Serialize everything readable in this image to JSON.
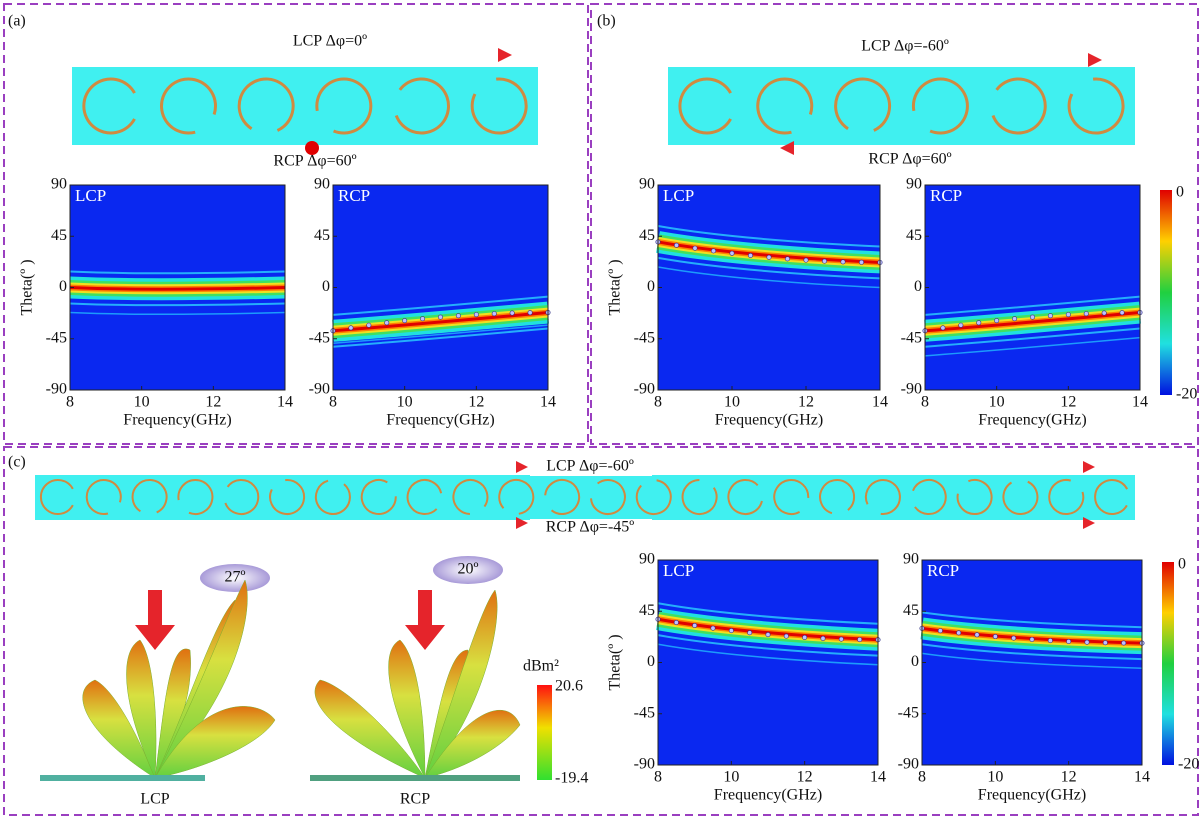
{
  "panels": [
    {
      "label": "(a)",
      "top_text": "LCP Δφ=0º",
      "bottom_text": "RCP Δφ=60º",
      "plots": [
        {
          "label": "LCP"
        },
        {
          "label": "RCP"
        }
      ]
    },
    {
      "label": "(b)",
      "top_text": "LCP Δφ=-60º",
      "bottom_text": "RCP Δφ=60º",
      "plots": [
        {
          "label": "LCP"
        },
        {
          "label": "RCP"
        }
      ]
    },
    {
      "label": "(c)",
      "top_text": "LCP Δφ=-60º",
      "bottom_text": "RCP Δφ=-45º",
      "plots": [
        {
          "label": "LCP"
        },
        {
          "label": "RCP"
        }
      ]
    }
  ],
  "axes": {
    "y_label": "Theta(º )",
    "x_label": "Frequency(GHz)",
    "yticks": [
      90,
      45,
      0,
      -45,
      -90
    ],
    "xticks": [
      8,
      10,
      12,
      14
    ]
  },
  "colorbar": {
    "max": 0,
    "min": -20
  },
  "rcs": {
    "unit": "dBm²",
    "max": 20.6,
    "min": -19.4,
    "angles": [
      "27º",
      "20º"
    ],
    "labels": [
      "LCP",
      "RCP"
    ]
  }
}
